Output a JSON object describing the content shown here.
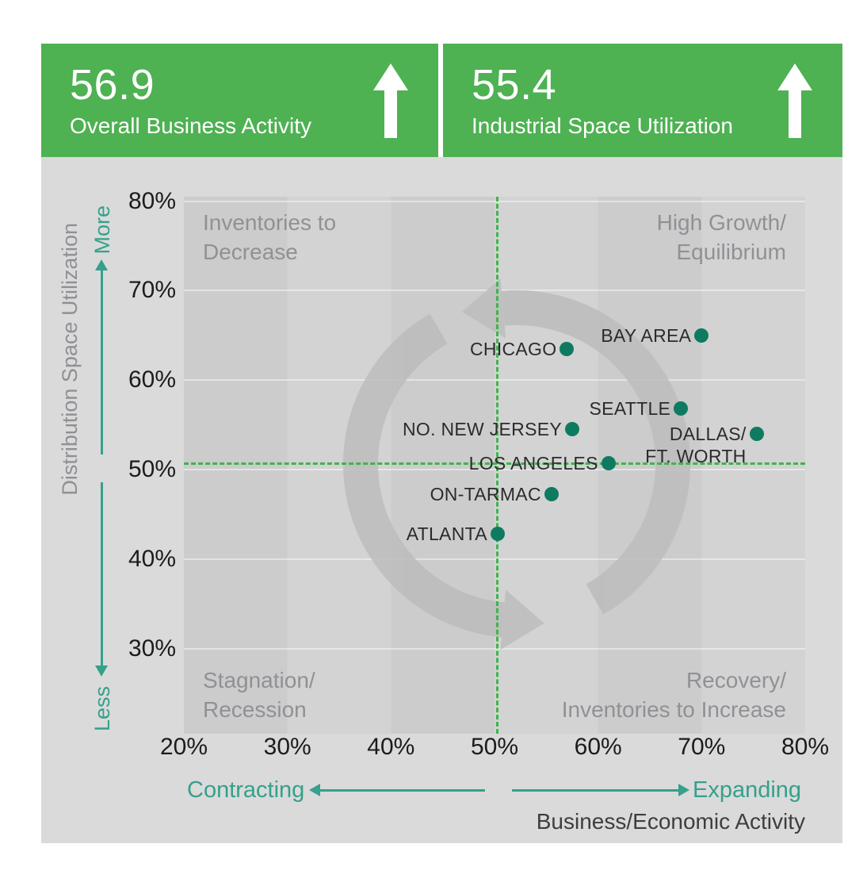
{
  "header": {
    "left": {
      "value": "56.9",
      "label": "Overall Business Activity",
      "trend": "up"
    },
    "right": {
      "value": "55.4",
      "label": "Industrial Space Utilization",
      "trend": "up"
    }
  },
  "colors": {
    "accent_green": "#4eb152",
    "teal": "#35a08c",
    "dot_color": "#0e7b60",
    "dash_green": "#3eb54b"
  },
  "chart_data": {
    "type": "scatter",
    "x_axis": {
      "label": "Business/Economic Activity",
      "ticks": [
        "20%",
        "30%",
        "40%",
        "50%",
        "60%",
        "70%",
        "80%"
      ],
      "range": [
        20,
        80
      ],
      "left_annotation": "Contracting",
      "right_annotation": "Expanding"
    },
    "y_axis": {
      "label": "Distribution Space Utilization",
      "ticks": [
        "80%",
        "70%",
        "60%",
        "50%",
        "40%",
        "30%"
      ],
      "range": [
        20.5,
        80.5
      ],
      "more_label": "More",
      "less_label": "Less"
    },
    "quadrants": {
      "top_left": "Inventories to\nDecrease",
      "top_right": "High Growth/\nEquilibrium",
      "bottom_left": "Stagnation/\nRecession",
      "bottom_right": "Recovery/\nInventories to Increase"
    },
    "crosshair": {
      "x": 50.2,
      "y": 50.7
    },
    "grid": true,
    "legend": "none",
    "points": [
      {
        "name": "BAY AREA",
        "x": 70.0,
        "y": 65.0,
        "label_lines": [
          "BAY AREA"
        ]
      },
      {
        "name": "CHICAGO",
        "x": 57.0,
        "y": 63.5,
        "label_lines": [
          "CHICAGO"
        ]
      },
      {
        "name": "SEATTLE",
        "x": 68.0,
        "y": 56.8,
        "label_lines": [
          "SEATTLE"
        ]
      },
      {
        "name": "NO. NEW JERSEY",
        "x": 57.5,
        "y": 54.5,
        "label_lines": [
          "NO. NEW JERSEY"
        ]
      },
      {
        "name": "DALLAS/FT. WORTH",
        "x": 75.3,
        "y": 54.0,
        "label_lines": [
          "DALLAS/",
          "FT. WORTH"
        ],
        "label_dy": 14
      },
      {
        "name": "LOS ANGELES",
        "x": 61.0,
        "y": 50.7,
        "label_lines": [
          "LOS ANGELES"
        ]
      },
      {
        "name": "ON-TARMAC",
        "x": 55.5,
        "y": 47.3,
        "label_lines": [
          "ON-TARMAC"
        ]
      },
      {
        "name": "ATLANTA",
        "x": 50.3,
        "y": 42.8,
        "label_lines": [
          "ATLANTA"
        ]
      }
    ]
  }
}
